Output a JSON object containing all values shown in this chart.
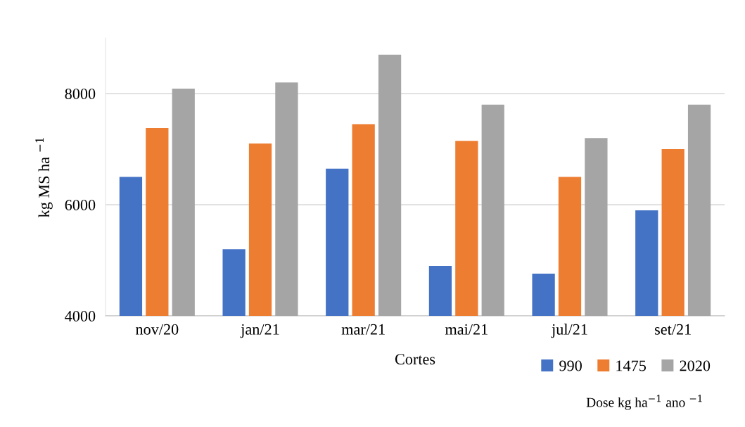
{
  "chart_data": {
    "type": "bar",
    "xlabel": "Cortes",
    "ylabel": "kg MS ha $^{−1}$",
    "legend_title": "Dose kg ha$^{−1}$ ano $^{−1}$",
    "categories": [
      "nov/20",
      "jan/21",
      "mar/21",
      "mai/21",
      "jul/21",
      "set/21"
    ],
    "series": [
      {
        "name": "990",
        "color": "#4472c4",
        "values": [
          6500,
          5200,
          6650,
          4900,
          4760,
          5900
        ]
      },
      {
        "name": "1475",
        "color": "#ed7d31",
        "values": [
          7380,
          7100,
          7450,
          7150,
          6500,
          7000
        ]
      },
      {
        "name": "2020",
        "color": "#a5a5a5",
        "values": [
          8090,
          8200,
          8700,
          7800,
          7200,
          7800
        ]
      }
    ],
    "ylim": [
      4000,
      9000
    ],
    "yticks": [
      4000,
      6000,
      8000
    ],
    "grid": "y",
    "legend": "bottom right"
  }
}
